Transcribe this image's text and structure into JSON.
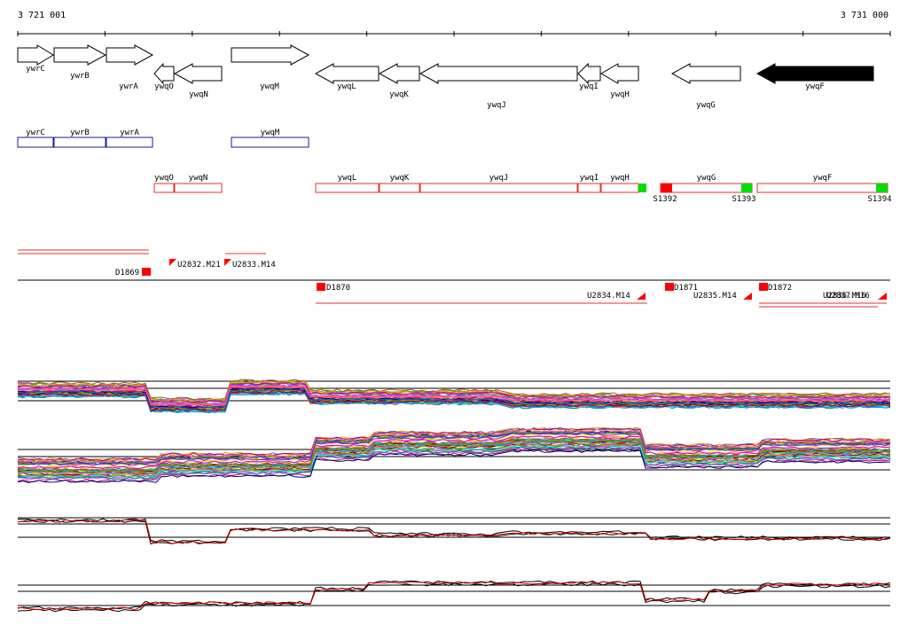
{
  "ruler": {
    "start_label": "3 721 001",
    "end_label": "3 731 000"
  },
  "genes": [
    {
      "name": "ywrC",
      "strand": "+"
    },
    {
      "name": "ywrB",
      "strand": "+"
    },
    {
      "name": "ywrA",
      "strand": "+"
    },
    {
      "name": "ywqO",
      "strand": "-"
    },
    {
      "name": "ywqN",
      "strand": "-"
    },
    {
      "name": "ywqM",
      "strand": "+"
    },
    {
      "name": "ywqL",
      "strand": "-"
    },
    {
      "name": "ywqK",
      "strand": "-"
    },
    {
      "name": "ywqJ",
      "strand": "-"
    },
    {
      "name": "ywqI",
      "strand": "-"
    },
    {
      "name": "ywqH",
      "strand": "-"
    },
    {
      "name": "ywqG",
      "strand": "-"
    },
    {
      "name": "ywqF",
      "strand": "-",
      "highlighted": true
    }
  ],
  "forward_track": [
    "ywrC",
    "ywrB",
    "ywrA",
    "ywqM"
  ],
  "reverse_track": [
    "ywqO",
    "ywqN",
    "ywqL",
    "ywqK",
    "ywqJ",
    "ywqI",
    "ywqH",
    "ywqG",
    "ywqF"
  ],
  "s_markers": [
    "S1392",
    "S1393",
    "S1394"
  ],
  "features": [
    "D1869",
    "U2832.M21",
    "U2833.M14",
    "D1870",
    "U2834.M14",
    "D1871",
    "U2835.M14",
    "D1872",
    "U2836.M16",
    "U2837.M16"
  ],
  "colors": {
    "forward_box": "#1a1aa0",
    "reverse_box": "#e03030",
    "marker_red": "#ff0000",
    "marker_green": "#00dd00",
    "highlight_gene": "#000000",
    "trace_black": "#000000",
    "trace_red": "#e00000"
  }
}
